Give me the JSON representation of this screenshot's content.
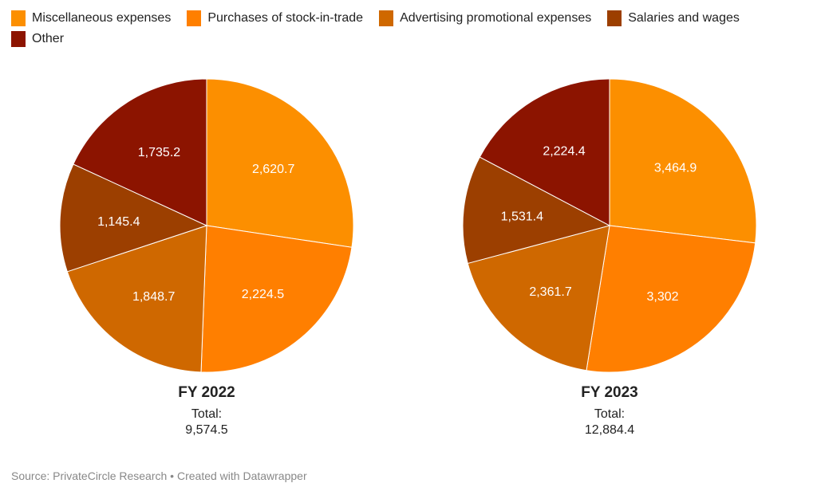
{
  "chart_data": [
    {
      "type": "pie",
      "title": "FY 2022",
      "total_label": "Total:",
      "total_value": "9,574.5",
      "categories": [
        "Miscellaneous expenses",
        "Purchases of stock-in-trade",
        "Advertising promotional expenses",
        "Salaries and wages",
        "Other"
      ],
      "values": [
        2620.7,
        2224.5,
        1848.7,
        1145.4,
        1735.2
      ],
      "labels": [
        "2,620.7",
        "2,224.5",
        "1,848.7",
        "1,145.4",
        "1,735.2"
      ]
    },
    {
      "type": "pie",
      "title": "FY 2023",
      "total_label": "Total:",
      "total_value": "12,884.4",
      "categories": [
        "Miscellaneous expenses",
        "Purchases of stock-in-trade",
        "Advertising promotional expenses",
        "Salaries and wages",
        "Other"
      ],
      "values": [
        3464.9,
        3302,
        2361.7,
        1531.4,
        2224.4
      ],
      "labels": [
        "3,464.9",
        "3,302",
        "2,361.7",
        "1,531.4",
        "2,224.4"
      ]
    }
  ],
  "legend": {
    "placement": "top-left",
    "items": [
      {
        "label": "Miscellaneous expenses",
        "color": "#fc8f00"
      },
      {
        "label": "Purchases of stock-in-trade",
        "color": "#ff7f00"
      },
      {
        "label": "Advertising promotional expenses",
        "color": "#cf6800"
      },
      {
        "label": "Salaries and wages",
        "color": "#9c3f00"
      },
      {
        "label": "Other",
        "color": "#8c1400"
      }
    ]
  },
  "footer": {
    "source": "Source: PrivateCircle Research • Created with Datawrapper"
  }
}
